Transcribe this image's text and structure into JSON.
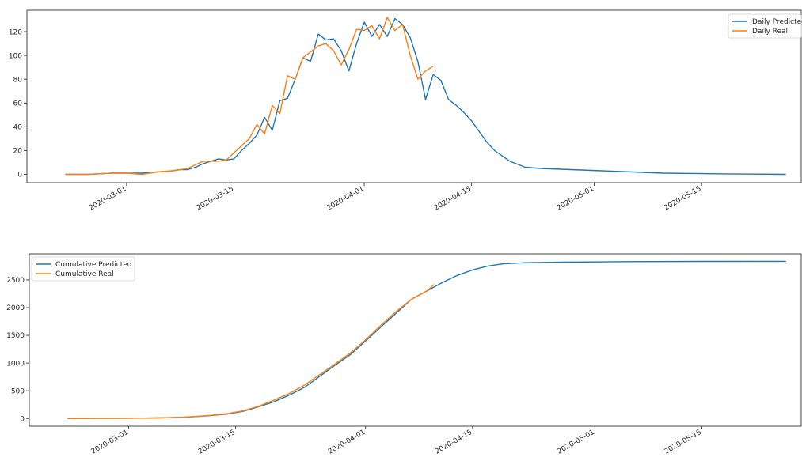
{
  "chart_data": [
    {
      "type": "line",
      "title": "",
      "xlabel": "",
      "ylabel": "",
      "x_ticks": [
        "2020-03-01",
        "2020-03-15",
        "2020-04-01",
        "2020-04-15",
        "2020-05-01",
        "2020-05-15"
      ],
      "y_ticks": [
        0,
        20,
        40,
        60,
        80,
        100,
        120
      ],
      "xlim": [
        "2020-02-17",
        "2020-05-28"
      ],
      "ylim": [
        -7,
        138
      ],
      "legend_position": "top-right",
      "grid": false,
      "series": [
        {
          "name": "Daily Predicted",
          "color": "#1f77b4",
          "points": [
            [
              "2020-02-22",
              0
            ],
            [
              "2020-02-25",
              0
            ],
            [
              "2020-02-28",
              1
            ],
            [
              "2020-03-01",
              1
            ],
            [
              "2020-03-03",
              1
            ],
            [
              "2020-03-05",
              2
            ],
            [
              "2020-03-07",
              3
            ],
            [
              "2020-03-08",
              4
            ],
            [
              "2020-03-09",
              4
            ],
            [
              "2020-03-10",
              6
            ],
            [
              "2020-03-11",
              9
            ],
            [
              "2020-03-12",
              11
            ],
            [
              "2020-03-13",
              13
            ],
            [
              "2020-03-14",
              12
            ],
            [
              "2020-03-15",
              13
            ],
            [
              "2020-03-16",
              20
            ],
            [
              "2020-03-17",
              26
            ],
            [
              "2020-03-18",
              33
            ],
            [
              "2020-03-19",
              48
            ],
            [
              "2020-03-20",
              37
            ],
            [
              "2020-03-21",
              62
            ],
            [
              "2020-03-22",
              64
            ],
            [
              "2020-03-23",
              80
            ],
            [
              "2020-03-24",
              98
            ],
            [
              "2020-03-25",
              95
            ],
            [
              "2020-03-26",
              118
            ],
            [
              "2020-03-27",
              113
            ],
            [
              "2020-03-28",
              114
            ],
            [
              "2020-03-29",
              104
            ],
            [
              "2020-03-30",
              87
            ],
            [
              "2020-03-31",
              110
            ],
            [
              "2020-04-01",
              128
            ],
            [
              "2020-04-02",
              116
            ],
            [
              "2020-04-03",
              126
            ],
            [
              "2020-04-04",
              116
            ],
            [
              "2020-04-05",
              131
            ],
            [
              "2020-04-06",
              126
            ],
            [
              "2020-04-07",
              115
            ],
            [
              "2020-04-08",
              95
            ],
            [
              "2020-04-09",
              63
            ],
            [
              "2020-04-10",
              84
            ],
            [
              "2020-04-11",
              79
            ],
            [
              "2020-04-12",
              63
            ],
            [
              "2020-04-13",
              58
            ],
            [
              "2020-04-14",
              52
            ],
            [
              "2020-04-15",
              45
            ],
            [
              "2020-04-16",
              36
            ],
            [
              "2020-04-17",
              27
            ],
            [
              "2020-04-18",
              20
            ],
            [
              "2020-04-20",
              11
            ],
            [
              "2020-04-22",
              6
            ],
            [
              "2020-04-24",
              5
            ],
            [
              "2020-04-28",
              4
            ],
            [
              "2020-05-02",
              3
            ],
            [
              "2020-05-06",
              2
            ],
            [
              "2020-05-10",
              1
            ],
            [
              "2020-05-14",
              0.7
            ],
            [
              "2020-05-18",
              0.4
            ],
            [
              "2020-05-22",
              0.2
            ],
            [
              "2020-05-26",
              0
            ]
          ]
        },
        {
          "name": "Daily Real",
          "color": "#ff7f0e",
          "points": [
            [
              "2020-02-22",
              0
            ],
            [
              "2020-02-25",
              0
            ],
            [
              "2020-02-28",
              1
            ],
            [
              "2020-03-01",
              1
            ],
            [
              "2020-03-03",
              0
            ],
            [
              "2020-03-05",
              2
            ],
            [
              "2020-03-07",
              3
            ],
            [
              "2020-03-09",
              5
            ],
            [
              "2020-03-10",
              8
            ],
            [
              "2020-03-11",
              11
            ],
            [
              "2020-03-12",
              11
            ],
            [
              "2020-03-13",
              11
            ],
            [
              "2020-03-14",
              12
            ],
            [
              "2020-03-15",
              18
            ],
            [
              "2020-03-16",
              24
            ],
            [
              "2020-03-17",
              30
            ],
            [
              "2020-03-18",
              42
            ],
            [
              "2020-03-19",
              34
            ],
            [
              "2020-03-20",
              58
            ],
            [
              "2020-03-21",
              51
            ],
            [
              "2020-03-22",
              83
            ],
            [
              "2020-03-23",
              80
            ],
            [
              "2020-03-24",
              98
            ],
            [
              "2020-03-25",
              103
            ],
            [
              "2020-03-26",
              108
            ],
            [
              "2020-03-27",
              110
            ],
            [
              "2020-03-28",
              104
            ],
            [
              "2020-03-29",
              92
            ],
            [
              "2020-03-30",
              105
            ],
            [
              "2020-03-31",
              122
            ],
            [
              "2020-04-01",
              121
            ],
            [
              "2020-04-02",
              125
            ],
            [
              "2020-04-03",
              114
            ],
            [
              "2020-04-04",
              132
            ],
            [
              "2020-04-05",
              121
            ],
            [
              "2020-04-06",
              126
            ],
            [
              "2020-04-07",
              100
            ],
            [
              "2020-04-08",
              80
            ],
            [
              "2020-04-09",
              87
            ],
            [
              "2020-04-10",
              91
            ]
          ]
        }
      ]
    },
    {
      "type": "line",
      "title": "",
      "xlabel": "",
      "ylabel": "",
      "x_ticks": [
        "2020-03-01",
        "2020-03-15",
        "2020-04-01",
        "2020-04-15",
        "2020-05-01",
        "2020-05-15"
      ],
      "y_ticks": [
        0,
        500,
        1000,
        1500,
        2000,
        2500
      ],
      "xlim": [
        "2020-02-17",
        "2020-05-28"
      ],
      "ylim": [
        -140,
        2970
      ],
      "legend_position": "top-left",
      "grid": false,
      "series": [
        {
          "name": "Cumulative Predicted",
          "color": "#1f77b4",
          "points": [
            [
              "2020-02-22",
              0
            ],
            [
              "2020-02-26",
              1
            ],
            [
              "2020-03-01",
              4
            ],
            [
              "2020-03-05",
              10
            ],
            [
              "2020-03-08",
              20
            ],
            [
              "2020-03-10",
              35
            ],
            [
              "2020-03-12",
              55
            ],
            [
              "2020-03-14",
              80
            ],
            [
              "2020-03-16",
              130
            ],
            [
              "2020-03-18",
              210
            ],
            [
              "2020-03-20",
              300
            ],
            [
              "2020-03-22",
              420
            ],
            [
              "2020-03-24",
              560
            ],
            [
              "2020-03-26",
              760
            ],
            [
              "2020-03-28",
              960
            ],
            [
              "2020-03-30",
              1150
            ],
            [
              "2020-04-01",
              1400
            ],
            [
              "2020-04-03",
              1650
            ],
            [
              "2020-04-05",
              1900
            ],
            [
              "2020-04-07",
              2150
            ],
            [
              "2020-04-09",
              2300
            ],
            [
              "2020-04-11",
              2450
            ],
            [
              "2020-04-13",
              2580
            ],
            [
              "2020-04-15",
              2680
            ],
            [
              "2020-04-17",
              2750
            ],
            [
              "2020-04-19",
              2790
            ],
            [
              "2020-04-22",
              2810
            ],
            [
              "2020-04-27",
              2820
            ],
            [
              "2020-05-05",
              2830
            ],
            [
              "2020-05-15",
              2834
            ],
            [
              "2020-05-26",
              2836
            ]
          ]
        },
        {
          "name": "Cumulative Real",
          "color": "#ff7f0e",
          "points": [
            [
              "2020-02-22",
              0
            ],
            [
              "2020-02-26",
              1
            ],
            [
              "2020-03-01",
              4
            ],
            [
              "2020-03-05",
              11
            ],
            [
              "2020-03-08",
              22
            ],
            [
              "2020-03-10",
              38
            ],
            [
              "2020-03-12",
              60
            ],
            [
              "2020-03-14",
              90
            ],
            [
              "2020-03-16",
              140
            ],
            [
              "2020-03-18",
              220
            ],
            [
              "2020-03-20",
              330
            ],
            [
              "2020-03-22",
              450
            ],
            [
              "2020-03-24",
              600
            ],
            [
              "2020-03-26",
              790
            ],
            [
              "2020-03-28",
              980
            ],
            [
              "2020-03-30",
              1180
            ],
            [
              "2020-04-01",
              1420
            ],
            [
              "2020-04-03",
              1680
            ],
            [
              "2020-04-05",
              1930
            ],
            [
              "2020-04-07",
              2150
            ],
            [
              "2020-04-09",
              2300
            ],
            [
              "2020-04-10",
              2420
            ]
          ]
        }
      ]
    }
  ]
}
